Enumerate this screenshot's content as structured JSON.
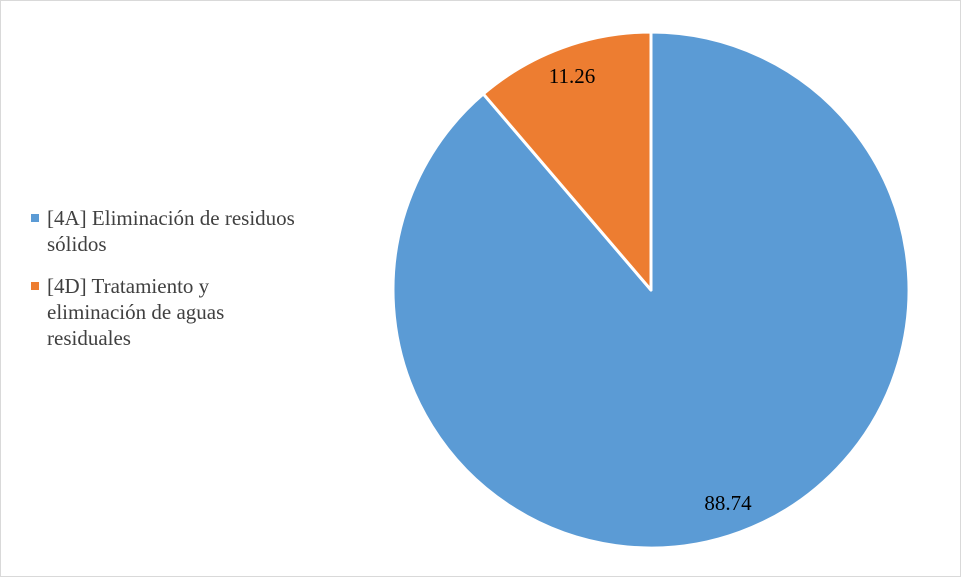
{
  "chart_data": {
    "type": "pie",
    "title": "",
    "slices": [
      {
        "label": "[4A] Eliminación de residuos sólidos",
        "label_lines": [
          "[4A] Eliminación de residuos",
          "sólidos"
        ],
        "value": 88.74,
        "value_label": "88.74",
        "color": "#5B9BD5"
      },
      {
        "label": "[4D] Tratamiento y eliminación de aguas residuales",
        "label_lines": [
          "[4D] Tratamiento y",
          "eliminación de aguas",
          "residuales"
        ],
        "value": 11.26,
        "value_label": "11.26",
        "color": "#ED7D31"
      }
    ],
    "start_angle_deg": 0,
    "direction": "clockwise",
    "legend_position": "left"
  }
}
